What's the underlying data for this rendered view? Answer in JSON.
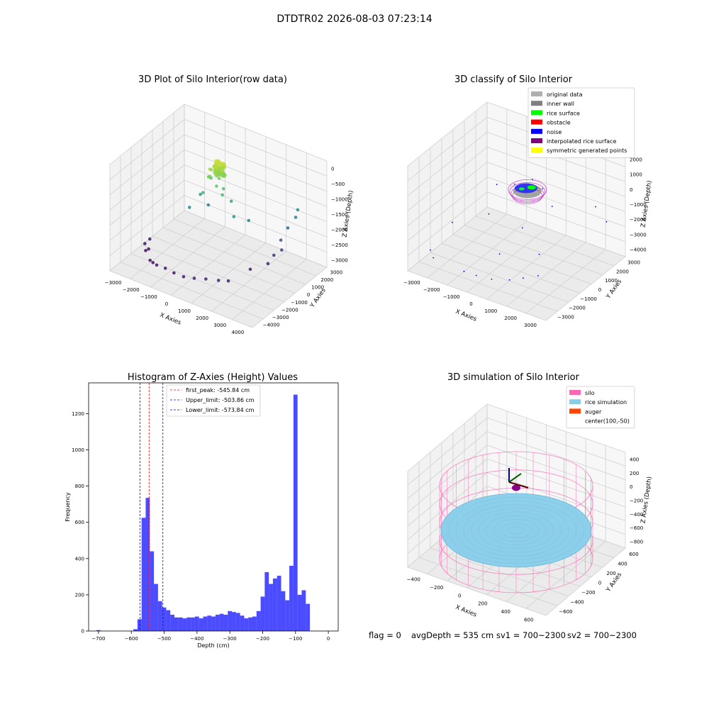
{
  "figure": {
    "suptitle": "DTDTR02 2026-08-03 07:23:14",
    "footer": {
      "flag": "flag = 0",
      "avg_depth": "avgDepth = 535 cm",
      "sv1": "sv1 = 700~2300",
      "sv2": "sv2 = 700~2300"
    }
  },
  "chart_data": [
    {
      "type": "scatter",
      "title": "3D Plot of Silo Interior(row data)",
      "xlabel": "X Axies",
      "ylabel": "Y Axies",
      "zlabel": "Z Axies (Depth)",
      "x_ticks": [
        "−3000",
        "−2000",
        "−1000",
        "0",
        "1000",
        "2000",
        "3000",
        "4000"
      ],
      "y_ticks": [
        "−4000",
        "−3000",
        "−2000",
        "−1000",
        "0",
        "1000",
        "2000",
        "3000"
      ],
      "z_ticks": [
        "0",
        "−500",
        "−1000",
        "−1500",
        "−2000",
        "−2500",
        "−3000"
      ],
      "xlim": [
        -3200,
        4200
      ],
      "ylim": [
        -4200,
        3200
      ],
      "zlim": [
        -3400,
        200
      ],
      "colormap": "viridis",
      "points": [
        {
          "x": 0,
          "y": 0,
          "z": -200
        },
        {
          "x": 150,
          "y": 100,
          "z": -250
        },
        {
          "x": -150,
          "y": -100,
          "z": -300
        },
        {
          "x": 200,
          "y": -150,
          "z": -350
        },
        {
          "x": -200,
          "y": 150,
          "z": -400
        },
        {
          "x": 100,
          "y": 200,
          "z": -450
        },
        {
          "x": -100,
          "y": -200,
          "z": -500
        },
        {
          "x": 250,
          "y": 50,
          "z": -550
        },
        {
          "x": -250,
          "y": -50,
          "z": -600
        },
        {
          "x": 300,
          "y": -300,
          "z": -700
        },
        {
          "x": -300,
          "y": 300,
          "z": -750
        },
        {
          "x": 400,
          "y": 200,
          "z": -900
        },
        {
          "x": 500,
          "y": -100,
          "z": -1000
        },
        {
          "x": -400,
          "y": -300,
          "z": -1100
        },
        {
          "x": 700,
          "y": 400,
          "z": -1300
        },
        {
          "x": -800,
          "y": 200,
          "z": -1400
        },
        {
          "x": 1200,
          "y": -300,
          "z": -1500
        },
        {
          "x": -1000,
          "y": -500,
          "z": -1700
        },
        {
          "x": 1500,
          "y": 600,
          "z": -1800
        },
        {
          "x": -700,
          "y": 800,
          "z": -1900
        },
        {
          "x": 3000,
          "y": 2600,
          "z": -1600
        },
        {
          "x": 3000,
          "y": 2400,
          "z": -1800
        },
        {
          "x": 2800,
          "y": 2000,
          "z": -2100
        },
        {
          "x": 2700,
          "y": 1500,
          "z": -2400
        },
        {
          "x": 2900,
          "y": 1200,
          "z": -2600
        },
        {
          "x": 2600,
          "y": 1000,
          "z": -2800
        },
        {
          "x": 2500,
          "y": 600,
          "z": -3000
        },
        {
          "x": 2000,
          "y": -200,
          "z": -3100
        },
        {
          "x": -2800,
          "y": -1000,
          "z": -3100
        },
        {
          "x": -2900,
          "y": -1300,
          "z": -3200
        },
        {
          "x": -2600,
          "y": -1500,
          "z": -3250
        },
        {
          "x": -2700,
          "y": -1600,
          "z": -3300
        },
        {
          "x": -2000,
          "y": -2500,
          "z": -3200
        },
        {
          "x": -1500,
          "y": -2800,
          "z": -3150
        },
        {
          "x": -1000,
          "y": -2900,
          "z": -3100
        },
        {
          "x": -500,
          "y": -3000,
          "z": -3100
        },
        {
          "x": 0,
          "y": -3000,
          "z": -3100
        },
        {
          "x": 500,
          "y": -2900,
          "z": -3050
        },
        {
          "x": 1000,
          "y": -2700,
          "z": -3000
        },
        {
          "x": 1500,
          "y": -2400,
          "z": -3000
        },
        {
          "x": 1800,
          "y": -2000,
          "z": -3050
        },
        {
          "x": -1800,
          "y": -2600,
          "z": -3200
        }
      ]
    },
    {
      "type": "scatter",
      "title": "3D classify of Silo Interior",
      "xlabel": "X Axies",
      "ylabel": "Y Axies",
      "zlabel": "Z Axies (Depth)",
      "x_ticks": [
        "−3000",
        "−2000",
        "−1000",
        "0",
        "1000",
        "2000",
        "3000"
      ],
      "y_ticks": [
        "−3000",
        "−2000",
        "−1000",
        "0",
        "1000",
        "2000",
        "3000"
      ],
      "z_ticks": [
        "2000",
        "1000",
        "0",
        "−1000",
        "−2000",
        "−3000",
        "−4000"
      ],
      "legend_placement": "top-right",
      "legend": [
        {
          "label": "original data",
          "color": "#b0b0b0"
        },
        {
          "label": "inner wall",
          "color": "#808080"
        },
        {
          "label": "rice surface",
          "color": "#00ff00"
        },
        {
          "label": "obstacle",
          "color": "#ff0000"
        },
        {
          "label": "noise",
          "color": "#0000ff"
        },
        {
          "label": "interpolated rice surface",
          "color": "#800080"
        },
        {
          "label": "symmetric generated points",
          "color": "#ffff00"
        }
      ]
    },
    {
      "type": "bar",
      "title": "Histogram of Z-Axies (Height) Values",
      "xlabel": "Depth (cm)",
      "ylabel": "Frequency",
      "xlim": [
        -730,
        30
      ],
      "ylim": [
        0,
        1370
      ],
      "x_ticks": [
        -700,
        -600,
        -500,
        -400,
        -300,
        -200,
        -100,
        0
      ],
      "y_ticks": [
        0,
        200,
        400,
        600,
        800,
        1000,
        1200
      ],
      "bar_color": "#0000ff",
      "bin_width": 12.5,
      "bins": [
        {
          "x": -700,
          "v": 5
        },
        {
          "x": -587.5,
          "v": 10
        },
        {
          "x": -575,
          "v": 65
        },
        {
          "x": -562.5,
          "v": 625
        },
        {
          "x": -550,
          "v": 735
        },
        {
          "x": -537.5,
          "v": 440
        },
        {
          "x": -525,
          "v": 260
        },
        {
          "x": -512.5,
          "v": 165
        },
        {
          "x": -500,
          "v": 130
        },
        {
          "x": -487.5,
          "v": 115
        },
        {
          "x": -475,
          "v": 90
        },
        {
          "x": -462.5,
          "v": 75
        },
        {
          "x": -450,
          "v": 75
        },
        {
          "x": -437.5,
          "v": 70
        },
        {
          "x": -425,
          "v": 75
        },
        {
          "x": -412.5,
          "v": 75
        },
        {
          "x": -400,
          "v": 80
        },
        {
          "x": -387.5,
          "v": 70
        },
        {
          "x": -375,
          "v": 80
        },
        {
          "x": -362.5,
          "v": 85
        },
        {
          "x": -350,
          "v": 80
        },
        {
          "x": -337.5,
          "v": 90
        },
        {
          "x": -325,
          "v": 95
        },
        {
          "x": -312.5,
          "v": 90
        },
        {
          "x": -300,
          "v": 110
        },
        {
          "x": -287.5,
          "v": 105
        },
        {
          "x": -275,
          "v": 100
        },
        {
          "x": -262.5,
          "v": 85
        },
        {
          "x": -250,
          "v": 70
        },
        {
          "x": -237.5,
          "v": 75
        },
        {
          "x": -225,
          "v": 80
        },
        {
          "x": -212.5,
          "v": 110
        },
        {
          "x": -200,
          "v": 190
        },
        {
          "x": -187.5,
          "v": 325
        },
        {
          "x": -175,
          "v": 260
        },
        {
          "x": -162.5,
          "v": 290
        },
        {
          "x": -150,
          "v": 305
        },
        {
          "x": -137.5,
          "v": 220
        },
        {
          "x": -125,
          "v": 170
        },
        {
          "x": -112.5,
          "v": 360
        },
        {
          "x": -100,
          "v": 1305
        },
        {
          "x": -87.5,
          "v": 200
        },
        {
          "x": -75,
          "v": 225
        },
        {
          "x": -62.5,
          "v": 150
        }
      ],
      "vlines": [
        {
          "x": -545.84,
          "color": "#ff0000",
          "label": "first_peak: -545.84 cm"
        },
        {
          "x": -503.86,
          "color": "#0000ff",
          "label": "Upper_limit: -503.86 cm"
        },
        {
          "x": -573.84,
          "color": "#0000ff",
          "label": "Lower_limit: -573.84 cm"
        }
      ],
      "legend_placement": "top-center"
    },
    {
      "type": "scatter",
      "title": "3D simulation of Silo Interior",
      "xlabel": "X Axies",
      "ylabel": "Y Axies",
      "zlabel": "Z Axies (Depth)",
      "x_ticks": [
        "−400",
        "−200",
        "0",
        "200",
        "400",
        "600"
      ],
      "y_ticks": [
        "−600",
        "−400",
        "−200",
        "0",
        "200",
        "400",
        "600"
      ],
      "z_ticks": [
        "400",
        "200",
        "0",
        "−200",
        "−400",
        "−600",
        "−800"
      ],
      "legend_placement": "top-right",
      "legend": [
        {
          "label": "silo",
          "color": "#ff69b4"
        },
        {
          "label": "rice simulation",
          "color": "#87ceeb"
        },
        {
          "label": "auger",
          "color": "#ff4500"
        },
        {
          "label": "center(100,-50)",
          "color": ""
        }
      ]
    }
  ]
}
